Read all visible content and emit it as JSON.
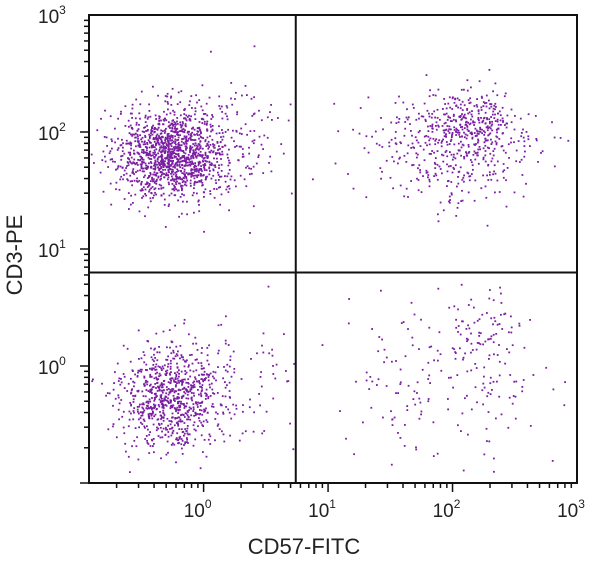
{
  "chart_data": {
    "type": "scatter",
    "xlabel": "CD57-FITC",
    "ylabel": "CD3-PE",
    "x_scale": "log",
    "y_scale": "log",
    "xlim": [
      0.12,
      1000
    ],
    "ylim": [
      0.1,
      1000
    ],
    "x_ticks": [
      {
        "base": "10",
        "exp": "0",
        "value": 1
      },
      {
        "base": "10",
        "exp": "1",
        "value": 10
      },
      {
        "base": "10",
        "exp": "2",
        "value": 100
      },
      {
        "base": "10",
        "exp": "3",
        "value": 1000
      }
    ],
    "y_ticks": [
      {
        "base": "10",
        "exp": "0",
        "value": 1
      },
      {
        "base": "10",
        "exp": "1",
        "value": 10
      },
      {
        "base": "10",
        "exp": "2",
        "value": 100
      },
      {
        "base": "10",
        "exp": "3",
        "value": 1000
      }
    ],
    "gates": {
      "x": 5.5,
      "y": 6.3
    },
    "point_color": "#7b1fa2",
    "grid": false,
    "populations": [
      {
        "quadrant": "upper-left",
        "count": 1300,
        "center": [
          0.55,
          65
        ],
        "spread_log10": [
          0.22,
          0.19
        ]
      },
      {
        "quadrant": "upper-left",
        "count": 180,
        "center": [
          1.5,
          80
        ],
        "spread_log10": [
          0.35,
          0.25
        ]
      },
      {
        "quadrant": "upper-right",
        "count": 420,
        "center": [
          100,
          70
        ],
        "spread_log10": [
          0.35,
          0.25
        ]
      },
      {
        "quadrant": "upper-right",
        "count": 220,
        "center": [
          140,
          120
        ],
        "spread_log10": [
          0.2,
          0.13
        ]
      },
      {
        "quadrant": "lower-left",
        "count": 800,
        "center": [
          0.55,
          0.55
        ],
        "spread_log10": [
          0.2,
          0.22
        ]
      },
      {
        "quadrant": "lower-left",
        "count": 120,
        "center": [
          1.2,
          0.6
        ],
        "spread_log10": [
          0.35,
          0.3
        ]
      },
      {
        "quadrant": "lower-right",
        "count": 180,
        "center": [
          90,
          0.8
        ],
        "spread_log10": [
          0.4,
          0.33
        ]
      },
      {
        "quadrant": "lower-right",
        "count": 60,
        "center": [
          180,
          2.0
        ],
        "spread_log10": [
          0.15,
          0.15
        ]
      }
    ]
  }
}
